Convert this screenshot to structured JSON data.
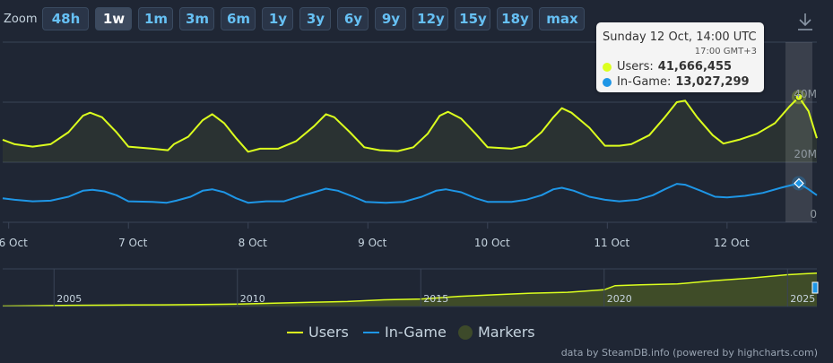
{
  "zoom": {
    "label": "Zoom",
    "buttons": [
      "48h",
      "1w",
      "1m",
      "3m",
      "6m",
      "1y",
      "3y",
      "6y",
      "9y",
      "12y",
      "15y",
      "18y",
      "max"
    ],
    "active": "1w"
  },
  "export_icon": "download-icon",
  "colors": {
    "background": "#1f2634",
    "users": "#dcff1e",
    "in_game": "#1e96e6",
    "markers": "#3d4a2a",
    "navigator_fill": "#5a6b1f",
    "accent": "#66c0f4"
  },
  "tooltip": {
    "title": "Sunday 12 Oct, 14:00 UTC",
    "subtitle": "17:00 GMT+3",
    "users_label": "Users:",
    "users_value": "41,666,455",
    "ingame_label": "In-Game:",
    "ingame_value": "13,027,299"
  },
  "chart_data": {
    "type": "line",
    "title": "",
    "xlabel": "",
    "ylabel": "",
    "x_tick_labels": [
      "6 Oct",
      "7 Oct",
      "8 Oct",
      "9 Oct",
      "10 Oct",
      "11 Oct",
      "12 Oct"
    ],
    "y_tick_labels": [
      "0",
      "20M",
      "40M"
    ],
    "ylim": [
      0,
      60000000
    ],
    "x_unit": "days since 6 Oct 00:00 UTC",
    "xlim": [
      -0.05,
      6.75
    ],
    "grid": true,
    "series": [
      {
        "name": "Users",
        "color": "#dcff1e",
        "points": [
          [
            -0.05,
            27.5
          ],
          [
            0.05,
            26.0
          ],
          [
            0.2,
            25.2
          ],
          [
            0.35,
            26.0
          ],
          [
            0.5,
            30.0
          ],
          [
            0.62,
            35.5
          ],
          [
            0.68,
            36.5
          ],
          [
            0.78,
            35.0
          ],
          [
            0.9,
            30.0
          ],
          [
            1.0,
            25.2
          ],
          [
            1.2,
            24.5
          ],
          [
            1.33,
            24.0
          ],
          [
            1.38,
            26.0
          ],
          [
            1.5,
            28.5
          ],
          [
            1.62,
            34.0
          ],
          [
            1.7,
            36.0
          ],
          [
            1.8,
            33.0
          ],
          [
            1.9,
            28.0
          ],
          [
            2.0,
            23.5
          ],
          [
            2.1,
            24.5
          ],
          [
            2.25,
            24.5
          ],
          [
            2.4,
            27.0
          ],
          [
            2.55,
            32.0
          ],
          [
            2.65,
            36.0
          ],
          [
            2.72,
            35.0
          ],
          [
            2.85,
            30.0
          ],
          [
            2.97,
            25.0
          ],
          [
            3.1,
            24.0
          ],
          [
            3.25,
            23.7
          ],
          [
            3.38,
            25.0
          ],
          [
            3.5,
            29.5
          ],
          [
            3.6,
            35.5
          ],
          [
            3.67,
            36.8
          ],
          [
            3.78,
            34.5
          ],
          [
            3.9,
            29.5
          ],
          [
            4.0,
            25.0
          ],
          [
            4.2,
            24.5
          ],
          [
            4.32,
            25.5
          ],
          [
            4.45,
            30.0
          ],
          [
            4.55,
            35.0
          ],
          [
            4.62,
            38.0
          ],
          [
            4.7,
            36.5
          ],
          [
            4.85,
            31.5
          ],
          [
            4.98,
            25.5
          ],
          [
            5.1,
            25.5
          ],
          [
            5.2,
            26.0
          ],
          [
            5.35,
            29.0
          ],
          [
            5.48,
            35.0
          ],
          [
            5.58,
            40.0
          ],
          [
            5.65,
            40.5
          ],
          [
            5.75,
            35.0
          ],
          [
            5.88,
            29.0
          ],
          [
            5.97,
            26.2
          ],
          [
            6.1,
            27.5
          ],
          [
            6.25,
            29.5
          ],
          [
            6.4,
            33.0
          ],
          [
            6.52,
            38.5
          ],
          [
            6.6,
            41.7
          ],
          [
            6.68,
            37.0
          ],
          [
            6.75,
            28.0
          ]
        ]
      },
      {
        "name": "In-Game",
        "color": "#1e96e6",
        "points": [
          [
            -0.05,
            8.0
          ],
          [
            0.05,
            7.5
          ],
          [
            0.2,
            7.0
          ],
          [
            0.35,
            7.2
          ],
          [
            0.5,
            8.5
          ],
          [
            0.62,
            10.5
          ],
          [
            0.7,
            10.8
          ],
          [
            0.8,
            10.3
          ],
          [
            0.9,
            9.0
          ],
          [
            1.0,
            7.0
          ],
          [
            1.2,
            6.8
          ],
          [
            1.32,
            6.5
          ],
          [
            1.4,
            7.2
          ],
          [
            1.52,
            8.5
          ],
          [
            1.62,
            10.5
          ],
          [
            1.7,
            11.0
          ],
          [
            1.8,
            10.0
          ],
          [
            1.9,
            8.0
          ],
          [
            2.0,
            6.5
          ],
          [
            2.15,
            7.0
          ],
          [
            2.3,
            7.0
          ],
          [
            2.42,
            8.5
          ],
          [
            2.55,
            10.0
          ],
          [
            2.65,
            11.2
          ],
          [
            2.75,
            10.5
          ],
          [
            2.88,
            8.5
          ],
          [
            2.98,
            6.8
          ],
          [
            3.15,
            6.5
          ],
          [
            3.3,
            6.8
          ],
          [
            3.45,
            8.5
          ],
          [
            3.57,
            10.5
          ],
          [
            3.65,
            11.0
          ],
          [
            3.78,
            10.0
          ],
          [
            3.9,
            8.0
          ],
          [
            4.0,
            6.8
          ],
          [
            4.2,
            6.8
          ],
          [
            4.32,
            7.5
          ],
          [
            4.45,
            9.0
          ],
          [
            4.55,
            11.0
          ],
          [
            4.62,
            11.5
          ],
          [
            4.72,
            10.5
          ],
          [
            4.85,
            8.5
          ],
          [
            4.98,
            7.5
          ],
          [
            5.1,
            7.0
          ],
          [
            5.25,
            7.5
          ],
          [
            5.38,
            9.0
          ],
          [
            5.48,
            11.0
          ],
          [
            5.58,
            12.8
          ],
          [
            5.65,
            12.5
          ],
          [
            5.78,
            10.5
          ],
          [
            5.9,
            8.5
          ],
          [
            6.0,
            8.3
          ],
          [
            6.15,
            8.8
          ],
          [
            6.3,
            9.8
          ],
          [
            6.45,
            11.5
          ],
          [
            6.55,
            12.5
          ],
          [
            6.6,
            13.0
          ],
          [
            6.68,
            11.0
          ],
          [
            6.75,
            9.0
          ]
        ]
      }
    ],
    "tooltip_point_x": 6.6,
    "navigator": {
      "labels": [
        "2005",
        "2010",
        "2015",
        "2020",
        "2025"
      ],
      "xlim": [
        2003.6,
        2025.8
      ],
      "ylim": [
        0,
        45
      ],
      "points": [
        [
          2003.6,
          0.5
        ],
        [
          2004.5,
          1
        ],
        [
          2005.5,
          1.5
        ],
        [
          2007,
          1.8
        ],
        [
          2008,
          2
        ],
        [
          2009,
          2.5
        ],
        [
          2010,
          3
        ],
        [
          2011,
          4
        ],
        [
          2012,
          5
        ],
        [
          2013,
          6
        ],
        [
          2014,
          8
        ],
        [
          2015,
          9
        ],
        [
          2016,
          12
        ],
        [
          2017,
          14
        ],
        [
          2018,
          16
        ],
        [
          2019,
          17
        ],
        [
          2020,
          20
        ],
        [
          2020.3,
          25
        ],
        [
          2021,
          26
        ],
        [
          2022,
          27
        ],
        [
          2023,
          31
        ],
        [
          2024,
          34
        ],
        [
          2025,
          38
        ],
        [
          2025.8,
          40
        ]
      ]
    }
  },
  "legend": {
    "users": "Users",
    "in_game": "In-Game",
    "markers": "Markers"
  },
  "credits": "data by SteamDB.info (powered by highcharts.com)"
}
